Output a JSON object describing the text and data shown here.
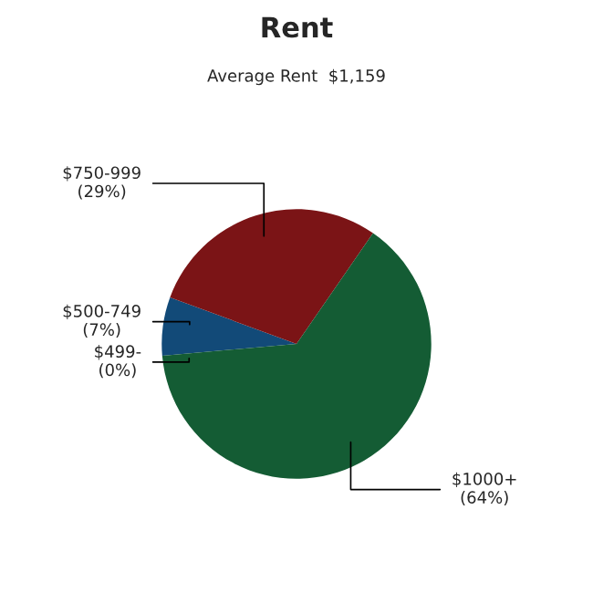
{
  "chart_data": {
    "type": "pie",
    "title": "Rent",
    "subtitle": "Average Rent  $1,159",
    "categories": [
      "$499-",
      "$500-749",
      "$750-999",
      "$1000+"
    ],
    "values": [
      0,
      7,
      29,
      64
    ],
    "value_labels": [
      "(0%)",
      "(7%)",
      "(29%)",
      "(64%)"
    ],
    "colors": [
      "#1f6f8b",
      "#124a78",
      "#7b1416",
      "#145c34"
    ]
  }
}
